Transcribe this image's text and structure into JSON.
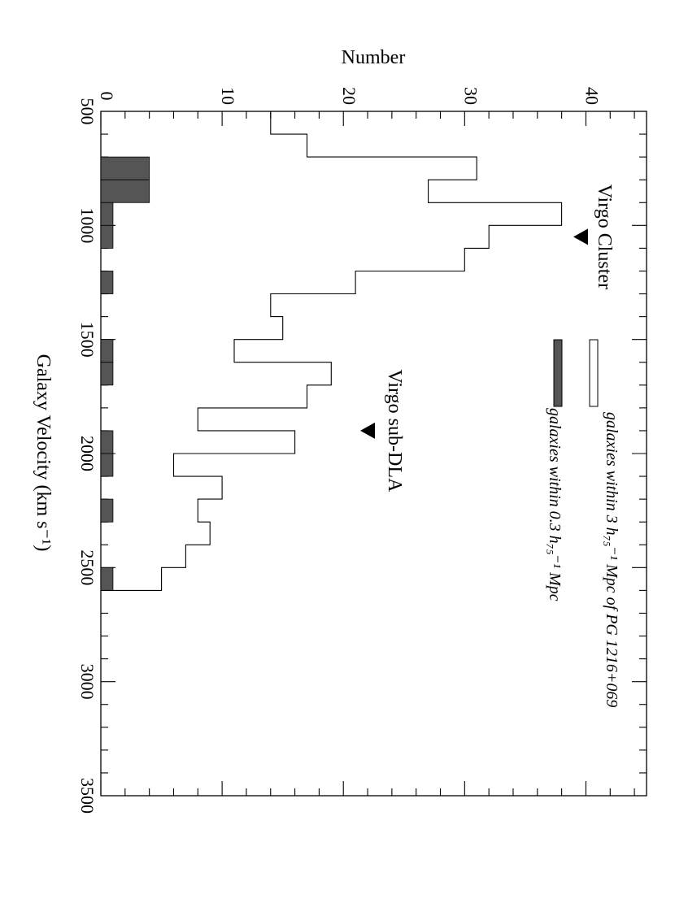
{
  "chart_data": {
    "type": "bar",
    "title": "",
    "xlabel": "Galaxy Velocity (km s⁻¹)",
    "ylabel": "Number",
    "xlim": [
      500,
      3500
    ],
    "ylim": [
      0,
      45
    ],
    "x_ticks": [
      "500",
      "1000",
      "1500",
      "2000",
      "2500",
      "3000",
      "3500"
    ],
    "y_ticks": [
      "0",
      "10",
      "20",
      "30",
      "40"
    ],
    "bin_width": 100,
    "bin_starts": [
      500,
      600,
      700,
      800,
      900,
      1000,
      1100,
      1200,
      1300,
      1400,
      1500,
      1600,
      1700,
      1800,
      1900,
      2000,
      2100,
      2200,
      2300,
      2400,
      2500,
      2600,
      2700,
      2800,
      2900,
      3000,
      3100,
      3200,
      3300,
      3400
    ],
    "series": [
      {
        "name": "galaxies within 3 h₇₅⁻¹ Mpc of PG 1216+069",
        "style": "outline",
        "color": "#000000",
        "values": [
          14,
          17,
          31,
          27,
          38,
          32,
          30,
          21,
          14,
          15,
          11,
          19,
          17,
          8,
          16,
          6,
          10,
          8,
          9,
          7,
          5,
          0,
          0,
          0,
          0,
          0,
          0,
          0,
          0,
          0
        ]
      },
      {
        "name": "galaxies within 0.3 h₇₅⁻¹ Mpc",
        "style": "filled",
        "color": "#555555",
        "values": [
          0,
          0,
          4,
          4,
          1,
          1,
          0,
          1,
          0,
          0,
          1,
          1,
          0,
          0,
          1,
          1,
          0,
          1,
          0,
          0,
          1,
          0,
          0,
          0,
          0,
          0,
          0,
          0,
          0,
          0
        ]
      }
    ],
    "annotations": [
      {
        "text": "Virgo Cluster",
        "velocity": 1050
      },
      {
        "text": "Virgo sub-DLA",
        "velocity": 1900
      }
    ],
    "legend_position": "top",
    "grid": false,
    "orientation": "rotated 90° clockwise"
  }
}
